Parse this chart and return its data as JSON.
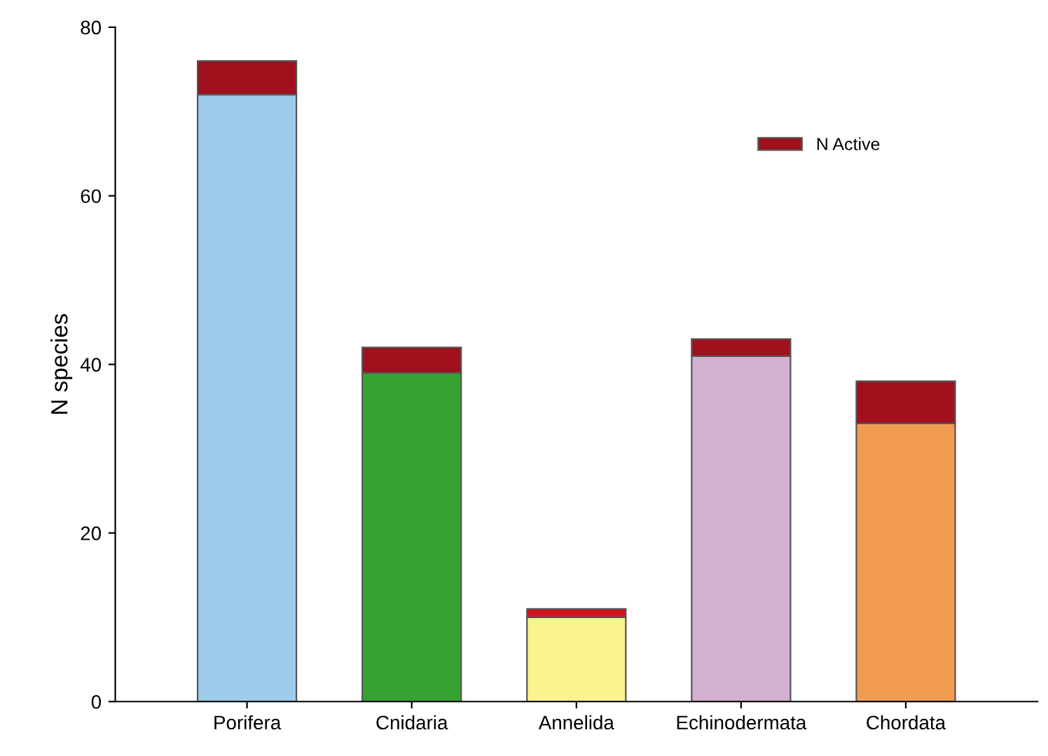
{
  "chart_data": {
    "type": "bar",
    "stacked": true,
    "ylabel": "N species",
    "categories": [
      "Porifera",
      "Cnidaria",
      "Annelida",
      "Echinodermata",
      "Chordata"
    ],
    "series": [
      {
        "colors": [
          "#9ccbeb",
          "#35a332",
          "#fdf38c",
          "#d3b0cf",
          "#f29c52"
        ],
        "values": [
          72,
          39,
          10,
          41,
          33
        ]
      },
      {
        "name": "N Active",
        "color": "#a0101d",
        "colors": [
          "#a0101d",
          "#a0101d",
          "#d4131c",
          "#a0101d",
          "#a0101d"
        ],
        "values": [
          4,
          3,
          1,
          2,
          5
        ]
      }
    ],
    "ylim": [
      0,
      80
    ],
    "yticks": [
      0,
      20,
      40,
      60,
      80
    ],
    "grid": false,
    "legend": "top right"
  }
}
